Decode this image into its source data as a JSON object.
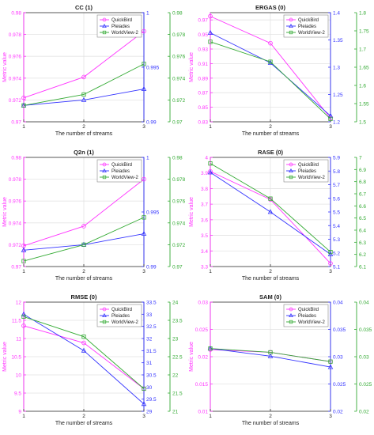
{
  "chart_data": [
    {
      "type": "line",
      "title": "CC (1)",
      "xlabel": "The number of streams",
      "ylabel": "Metric value",
      "x": [
        1,
        2,
        3
      ],
      "xticks": [
        "1",
        "2",
        "3"
      ],
      "grid": true,
      "legend": "top-right",
      "axes": [
        {
          "side": "left",
          "color": "#ff33ff",
          "ylim": [
            0.97,
            0.98
          ],
          "ticks": [
            "0.97",
            "0.972",
            "0.974",
            "0.976",
            "0.978",
            "0.98"
          ]
        },
        {
          "side": "right1",
          "color": "#3333ff",
          "ylim": [
            0.99,
            1
          ],
          "ticks": [
            "0.99",
            "0.995",
            "1"
          ]
        },
        {
          "side": "right2",
          "color": "#33aa33",
          "ylim": [
            0.97,
            0.98
          ],
          "ticks": [
            "0.97",
            "0.972",
            "0.974",
            "0.976",
            "0.978",
            "0.98"
          ]
        }
      ],
      "series": [
        {
          "name": "QuickBird",
          "axis": 0,
          "color": "#ff33ff",
          "marker": "circle",
          "values": [
            0.9722,
            0.9741,
            0.9783
          ]
        },
        {
          "name": "Pleiades",
          "axis": 1,
          "color": "#3333ff",
          "marker": "triangle",
          "values": [
            0.9915,
            0.992,
            0.993
          ]
        },
        {
          "name": "WorldView-2",
          "axis": 2,
          "color": "#33aa33",
          "marker": "square",
          "values": [
            0.9715,
            0.9725,
            0.9753
          ]
        }
      ]
    },
    {
      "type": "line",
      "title": "ERGAS (0)",
      "xlabel": "The number of streams",
      "ylabel": "Metric value",
      "x": [
        1,
        2,
        3
      ],
      "xticks": [
        "1",
        "2",
        "3"
      ],
      "grid": true,
      "legend": "top-right",
      "axes": [
        {
          "side": "left",
          "color": "#ff33ff",
          "ylim": [
            0.83,
            0.98
          ],
          "ticks": [
            "0.83",
            "0.85",
            "0.87",
            "0.89",
            "0.91",
            "0.93",
            "0.95",
            "0.97"
          ]
        },
        {
          "side": "right1",
          "color": "#3333ff",
          "ylim": [
            1.2,
            1.4
          ],
          "ticks": [
            "1.2",
            "1.25",
            "1.3",
            "1.35",
            "1.4"
          ]
        },
        {
          "side": "right2",
          "color": "#33aa33",
          "ylim": [
            1.5,
            1.8
          ],
          "ticks": [
            "1.5",
            "1.55",
            "1.6",
            "1.65",
            "1.7",
            "1.75",
            "1.8"
          ]
        }
      ],
      "series": [
        {
          "name": "QuickBird",
          "axis": 0,
          "color": "#ff33ff",
          "marker": "circle",
          "values": [
            0.975,
            0.938,
            0.835
          ]
        },
        {
          "name": "Pleiades",
          "axis": 1,
          "color": "#3333ff",
          "marker": "triangle",
          "values": [
            1.363,
            1.308,
            1.211
          ]
        },
        {
          "name": "WorldView-2",
          "axis": 2,
          "color": "#33aa33",
          "marker": "square",
          "values": [
            1.72,
            1.665,
            1.508
          ]
        }
      ]
    },
    {
      "type": "line",
      "title": "Q2n (1)",
      "xlabel": "The number of streams",
      "ylabel": "Metric value",
      "x": [
        1,
        2,
        3
      ],
      "xticks": [
        "1",
        "2",
        "3"
      ],
      "grid": true,
      "legend": "top-right",
      "axes": [
        {
          "side": "left",
          "color": "#ff33ff",
          "ylim": [
            0.97,
            0.98
          ],
          "ticks": [
            "0.97",
            "0.972",
            "0.974",
            "0.976",
            "0.978",
            "0.98"
          ]
        },
        {
          "side": "right1",
          "color": "#3333ff",
          "ylim": [
            0.99,
            1
          ],
          "ticks": [
            "0.99",
            "0.995",
            "1"
          ]
        },
        {
          "side": "right2",
          "color": "#33aa33",
          "ylim": [
            0.97,
            0.98
          ],
          "ticks": [
            "0.97",
            "0.972",
            "0.974",
            "0.976",
            "0.978",
            "0.98"
          ]
        }
      ],
      "series": [
        {
          "name": "QuickBird",
          "axis": 0,
          "color": "#ff33ff",
          "marker": "circle",
          "values": [
            0.9719,
            0.9737,
            0.978
          ]
        },
        {
          "name": "Pleiades",
          "axis": 1,
          "color": "#3333ff",
          "marker": "triangle",
          "values": [
            0.9915,
            0.992,
            0.993
          ]
        },
        {
          "name": "WorldView-2",
          "axis": 2,
          "color": "#33aa33",
          "marker": "square",
          "values": [
            0.9705,
            0.972,
            0.9745
          ]
        }
      ]
    },
    {
      "type": "line",
      "title": "RASE (0)",
      "xlabel": "The number of streams",
      "ylabel": "Metric value",
      "x": [
        1,
        2,
        3
      ],
      "xticks": [
        "1",
        "2",
        "3"
      ],
      "grid": true,
      "legend": "top-right",
      "axes": [
        {
          "side": "left",
          "color": "#ff33ff",
          "ylim": [
            3.3,
            4
          ],
          "ticks": [
            "3.3",
            "3.4",
            "3.5",
            "3.6",
            "3.7",
            "3.8",
            "3.9",
            "4"
          ]
        },
        {
          "side": "right1",
          "color": "#3333ff",
          "ylim": [
            5.1,
            5.9
          ],
          "ticks": [
            "5.1",
            "5.2",
            "5.3",
            "5.4",
            "5.5",
            "5.6",
            "5.7",
            "5.8",
            "5.9"
          ]
        },
        {
          "side": "right2",
          "color": "#33aa33",
          "ylim": [
            6.1,
            7
          ],
          "ticks": [
            "6.1",
            "6.2",
            "6.3",
            "6.4",
            "6.5",
            "6.6",
            "6.7",
            "6.8",
            "6.9",
            "7"
          ]
        }
      ],
      "series": [
        {
          "name": "QuickBird",
          "axis": 0,
          "color": "#ff33ff",
          "marker": "circle",
          "values": [
            3.91,
            3.73,
            3.32
          ]
        },
        {
          "name": "Pleiades",
          "axis": 1,
          "color": "#3333ff",
          "marker": "triangle",
          "values": [
            5.79,
            5.5,
            5.19
          ]
        },
        {
          "name": "WorldView-2",
          "axis": 2,
          "color": "#33aa33",
          "marker": "square",
          "values": [
            6.95,
            6.66,
            6.22
          ]
        }
      ]
    },
    {
      "type": "line",
      "title": "RMSE (0)",
      "xlabel": "The number of streams",
      "ylabel": "Metric value",
      "x": [
        1,
        2,
        3
      ],
      "xticks": [
        "1",
        "2",
        "3"
      ],
      "grid": true,
      "legend": "top-right",
      "axes": [
        {
          "side": "left",
          "color": "#ff33ff",
          "ylim": [
            9,
            12
          ],
          "ticks": [
            "9",
            "9.5",
            "10",
            "10.5",
            "11",
            "11.5",
            "12"
          ]
        },
        {
          "side": "right1",
          "color": "#3333ff",
          "ylim": [
            29,
            33.5
          ],
          "ticks": [
            "29",
            "29.5",
            "30",
            "30.5",
            "31",
            "31.5",
            "32",
            "32.5",
            "33",
            "33.5"
          ]
        },
        {
          "side": "right2",
          "color": "#33aa33",
          "ylim": [
            21,
            24
          ],
          "ticks": [
            "21",
            "21.5",
            "22",
            "22.5",
            "23",
            "23.5",
            "24"
          ]
        }
      ],
      "series": [
        {
          "name": "QuickBird",
          "axis": 0,
          "color": "#ff33ff",
          "marker": "circle",
          "values": [
            11.35,
            10.88,
            9.62
          ]
        },
        {
          "name": "Pleiades",
          "axis": 1,
          "color": "#3333ff",
          "marker": "triangle",
          "values": [
            33,
            31.5,
            29.3
          ]
        },
        {
          "name": "WorldView-2",
          "axis": 2,
          "color": "#33aa33",
          "marker": "square",
          "values": [
            23.6,
            23.05,
            21.62
          ]
        }
      ]
    },
    {
      "type": "line",
      "title": "SAM (0)",
      "xlabel": "The number of streams",
      "ylabel": "Metric value",
      "x": [
        1,
        2,
        3
      ],
      "xticks": [
        "1",
        "2",
        "3"
      ],
      "grid": true,
      "legend": "top-right",
      "axes": [
        {
          "side": "left",
          "color": "#ff33ff",
          "ylim": [
            0.01,
            0.03
          ],
          "ticks": [
            "0.01",
            "0.015",
            "0.02",
            "0.025",
            "0.03"
          ]
        },
        {
          "side": "right1",
          "color": "#3333ff",
          "ylim": [
            0.02,
            0.04
          ],
          "ticks": [
            "0.02",
            "0.025",
            "0.03",
            "0.035",
            "0.04"
          ]
        },
        {
          "side": "right2",
          "color": "#33aa33",
          "ylim": [
            0.02,
            0.04
          ],
          "ticks": [
            "0.02",
            "0.025",
            "0.03",
            "0.035",
            "0.04"
          ]
        }
      ],
      "series": [
        {
          "name": "QuickBird",
          "axis": 0,
          "color": "#ff33ff",
          "marker": "circle",
          "values": [
            0.0213,
            0.0208,
            0.0191
          ]
        },
        {
          "name": "Pleiades",
          "axis": 1,
          "color": "#3333ff",
          "marker": "triangle",
          "values": [
            0.0315,
            0.0301,
            0.0281
          ]
        },
        {
          "name": "WorldView-2",
          "axis": 2,
          "color": "#33aa33",
          "marker": "square",
          "values": [
            0.0315,
            0.0308,
            0.0291
          ]
        }
      ]
    }
  ]
}
